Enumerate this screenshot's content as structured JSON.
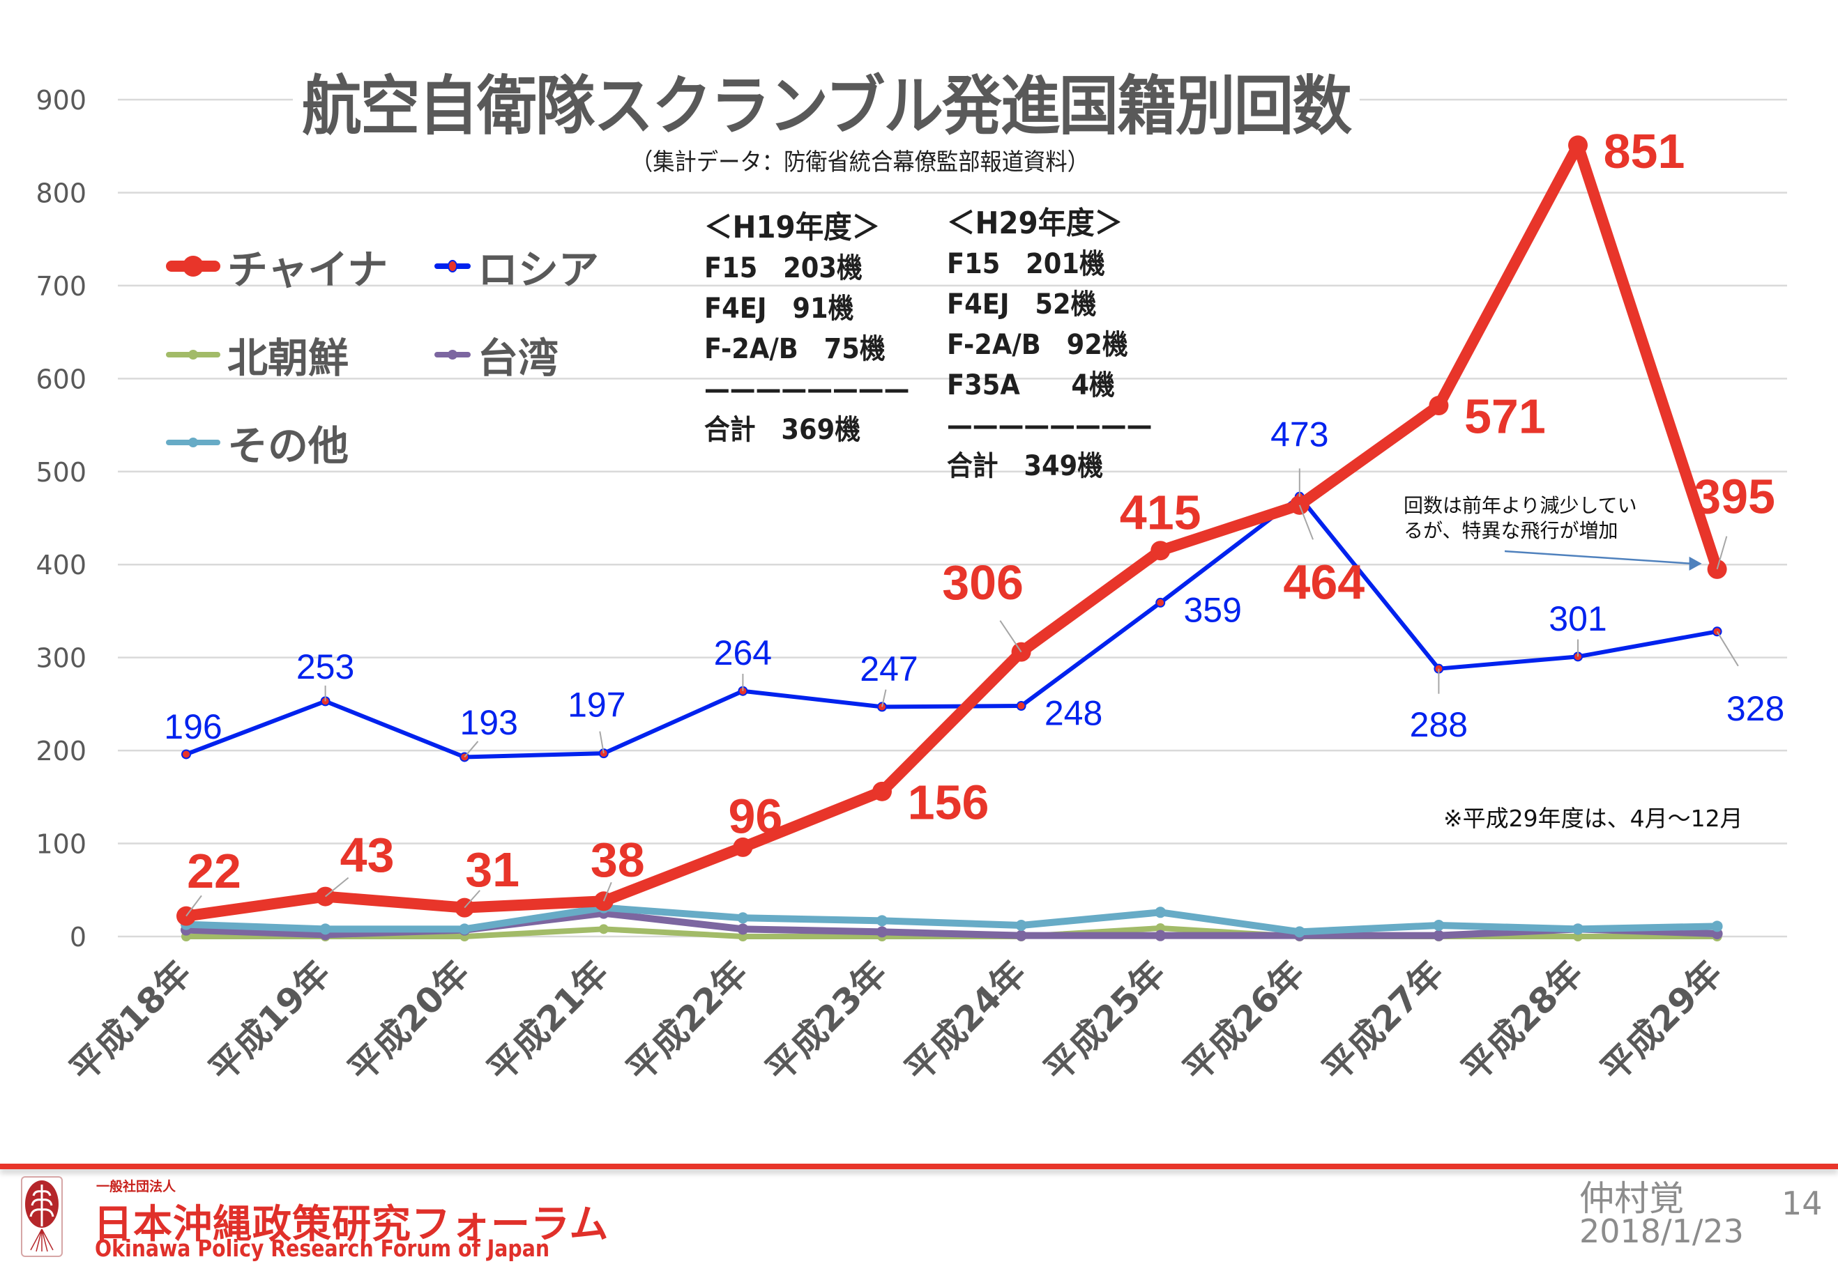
{
  "slide": {
    "title": "航空自衛隊スクランブル発進国籍別回数",
    "subtitle": "（集計データ：防衛省統合幕僚監部報道資料）",
    "page_number": "14",
    "author": "仲村覚",
    "date": "2018/1/23"
  },
  "organization": {
    "type_label": "一般社団法人",
    "name_jp": "日本沖縄政策研究フォーラム",
    "name_en": "Okinawa Policy Research Forum of Japan",
    "logo_icon": "plant-sprout-icon"
  },
  "fleet_h19": {
    "header": "＜H19年度＞",
    "rows": [
      "F15　203機",
      "F4EJ　91機",
      "F-2A/B　75機",
      "————————",
      "合計　369機"
    ]
  },
  "fleet_h29": {
    "header": "＜H29年度＞",
    "rows": [
      "F15　201機",
      "F4EJ　52機",
      "F-2A/B　92機",
      "F35A　　4機",
      "————————",
      "合計　349機"
    ]
  },
  "annotation": {
    "text_line1": "回数は前年より減少してい",
    "text_line2": "るが、特異な飛行が増加"
  },
  "footnote": "※平成29年度は、4月～12月",
  "colors": {
    "china": "#e8352a",
    "russia": "#0022ee",
    "north_korea": "#a2bb68",
    "taiwan": "#7c66a0",
    "other": "#67abc6",
    "grid": "#d9d9d9",
    "axis_text": "#595959",
    "footer_red": "#e8352a"
  },
  "chart_data": {
    "type": "line",
    "title": "航空自衛隊スクランブル発進国籍別回数",
    "subtitle": "（集計データ：防衛省統合幕僚監部報道資料）",
    "xlabel": "",
    "ylabel": "",
    "ylim": [
      0,
      900
    ],
    "yticks": [
      0,
      100,
      200,
      300,
      400,
      500,
      600,
      700,
      800,
      900
    ],
    "ytick_labels": [
      "0",
      "100",
      "200",
      "300",
      "400",
      "500",
      "600",
      "700",
      "800",
      "900"
    ],
    "grid": true,
    "legend_position": "top-left",
    "categories": [
      "平成18年",
      "平成19年",
      "平成20年",
      "平成21年",
      "平成22年",
      "平成23年",
      "平成24年",
      "平成25年",
      "平成26年",
      "平成27年",
      "平成28年",
      "平成29年"
    ],
    "series": [
      {
        "key": "china",
        "name": "チャイナ",
        "values": [
          22,
          43,
          31,
          38,
          96,
          156,
          306,
          415,
          464,
          571,
          851,
          395
        ],
        "labeled": true
      },
      {
        "key": "russia",
        "name": "ロシア",
        "values": [
          196,
          253,
          193,
          197,
          264,
          247,
          248,
          359,
          473,
          288,
          301,
          328
        ],
        "labeled": true
      },
      {
        "key": "north_korea",
        "name": "北朝鮮",
        "values": [
          0,
          0,
          0,
          8,
          0,
          0,
          0,
          9,
          0,
          0,
          0,
          0
        ],
        "labeled": false
      },
      {
        "key": "taiwan",
        "name": "台湾",
        "values": [
          7,
          2,
          7,
          25,
          8,
          5,
          1,
          1,
          1,
          1,
          8,
          3
        ],
        "labeled": false
      },
      {
        "key": "other",
        "name": "その他",
        "values": [
          13,
          8,
          8,
          31,
          20,
          17,
          12,
          26,
          5,
          12,
          8,
          11
        ],
        "labeled": false
      }
    ],
    "annotations": [
      {
        "text": "回数は前年より減少しているが、特異な飛行が増加",
        "points_to": {
          "series": "チャイナ",
          "category": "平成29年"
        }
      },
      {
        "text": "※平成29年度は、4月～12月"
      }
    ]
  }
}
